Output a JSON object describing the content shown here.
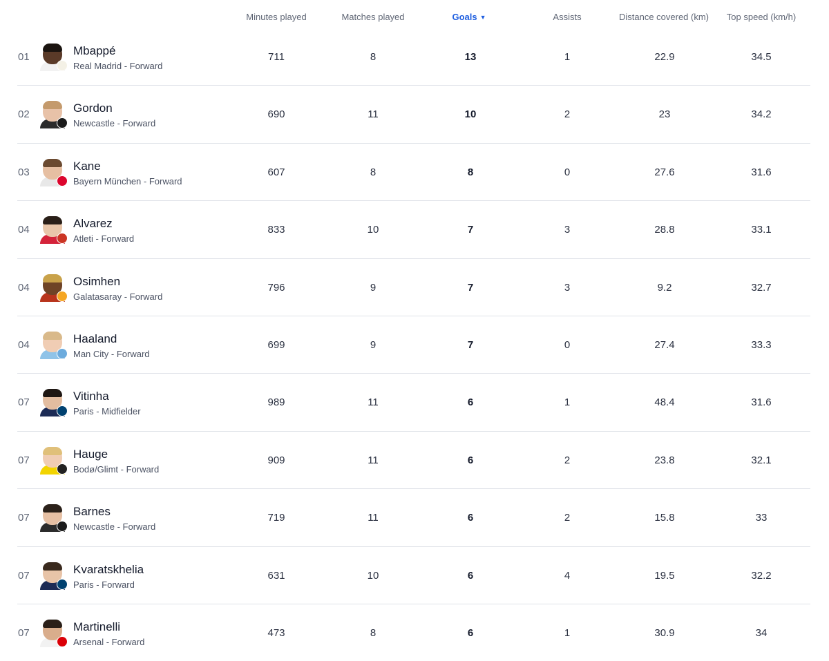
{
  "columns": {
    "minutes": "Minutes played",
    "matches": "Matches played",
    "goals": "Goals",
    "goals_sort_icon": "▼",
    "assists": "Assists",
    "distance": "Distance covered (km)",
    "speed": "Top speed (km/h)"
  },
  "colors": {
    "accent": "#1f5fe0",
    "divider": "#dfe2e8"
  },
  "players": [
    {
      "rank": "01",
      "name": "Mbappé",
      "team": "Real Madrid - Forward",
      "minutes": "711",
      "matches": "8",
      "goals": "13",
      "assists": "1",
      "distance": "22.9",
      "speed": "34.5",
      "skin": "#5a3a28",
      "hair": "#1b1410",
      "shirt": "#f2f2f2",
      "badge": "#f4f1e6"
    },
    {
      "rank": "02",
      "name": "Gordon",
      "team": "Newcastle - Forward",
      "minutes": "690",
      "matches": "11",
      "goals": "10",
      "assists": "2",
      "distance": "23",
      "speed": "34.2",
      "skin": "#e8c2a8",
      "hair": "#c49a6c",
      "shirt": "#2b2b2b",
      "badge": "#1b1b1b"
    },
    {
      "rank": "03",
      "name": "Kane",
      "team": "Bayern München - Forward",
      "minutes": "607",
      "matches": "8",
      "goals": "8",
      "assists": "0",
      "distance": "27.6",
      "speed": "31.6",
      "skin": "#e6bfa2",
      "hair": "#6b4a30",
      "shirt": "#e8e8e8",
      "badge": "#dc052d"
    },
    {
      "rank": "04",
      "name": "Alvarez",
      "team": "Atleti - Forward",
      "minutes": "833",
      "matches": "10",
      "goals": "7",
      "assists": "3",
      "distance": "28.8",
      "speed": "33.1",
      "skin": "#e9c6aa",
      "hair": "#2a1f18",
      "shirt": "#d4233a",
      "badge": "#cb3524"
    },
    {
      "rank": "04",
      "name": "Osimhen",
      "team": "Galatasaray - Forward",
      "minutes": "796",
      "matches": "9",
      "goals": "7",
      "assists": "3",
      "distance": "9.2",
      "speed": "32.7",
      "skin": "#6e4326",
      "hair": "#c9a24a",
      "shirt": "#b8341c",
      "badge": "#f5a623"
    },
    {
      "rank": "04",
      "name": "Haaland",
      "team": "Man City - Forward",
      "minutes": "699",
      "matches": "9",
      "goals": "7",
      "assists": "0",
      "distance": "27.4",
      "speed": "33.3",
      "skin": "#f0cdb4",
      "hair": "#d9b98a",
      "shirt": "#8fc3e8",
      "badge": "#6cabdd"
    },
    {
      "rank": "07",
      "name": "Vitinha",
      "team": "Paris - Midfielder",
      "minutes": "989",
      "matches": "11",
      "goals": "6",
      "assists": "1",
      "distance": "48.4",
      "speed": "31.6",
      "skin": "#e3bda0",
      "hair": "#1e1713",
      "shirt": "#1c2b55",
      "badge": "#004170"
    },
    {
      "rank": "07",
      "name": "Hauge",
      "team": "Bodø/Glimt - Forward",
      "minutes": "909",
      "matches": "11",
      "goals": "6",
      "assists": "2",
      "distance": "23.8",
      "speed": "32.1",
      "skin": "#f0cdb4",
      "hair": "#e0c07a",
      "shirt": "#f2d400",
      "badge": "#222222"
    },
    {
      "rank": "07",
      "name": "Barnes",
      "team": "Newcastle - Forward",
      "minutes": "719",
      "matches": "11",
      "goals": "6",
      "assists": "2",
      "distance": "15.8",
      "speed": "33",
      "skin": "#e6c0a4",
      "hair": "#2b211a",
      "shirt": "#2b2b2b",
      "badge": "#1b1b1b"
    },
    {
      "rank": "07",
      "name": "Kvaratskhelia",
      "team": "Paris - Forward",
      "minutes": "631",
      "matches": "10",
      "goals": "6",
      "assists": "4",
      "distance": "19.5",
      "speed": "32.2",
      "skin": "#e8c4a8",
      "hair": "#3a2a1e",
      "shirt": "#1c2b55",
      "badge": "#004170"
    },
    {
      "rank": "07",
      "name": "Martinelli",
      "team": "Arsenal - Forward",
      "minutes": "473",
      "matches": "8",
      "goals": "6",
      "assists": "1",
      "distance": "30.9",
      "speed": "34",
      "skin": "#d9ad8c",
      "hair": "#2a1f18",
      "shirt": "#f2f2f2",
      "badge": "#db0007"
    }
  ]
}
